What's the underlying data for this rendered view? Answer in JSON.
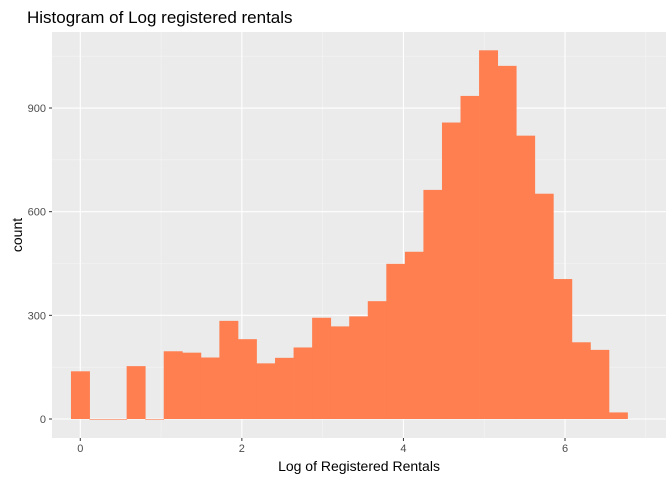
{
  "chart_data": {
    "type": "bar",
    "title": "Histogram of Log registered rentals",
    "xlabel": "Log of Registered Rentals",
    "ylabel": "count",
    "xlim": [
      -0.35,
      7.25
    ],
    "ylim": [
      -55,
      1120
    ],
    "xticks": [
      0,
      2,
      4,
      6
    ],
    "yticks": [
      0,
      300,
      600,
      900
    ],
    "xtick_labels": [
      "0",
      "2",
      "4",
      "6"
    ],
    "ytick_labels": [
      "0",
      "300",
      "600",
      "900"
    ],
    "grid": true,
    "legend": "none",
    "bin_start": -0.115,
    "bin_width": 0.2296,
    "values": [
      138,
      0,
      0,
      153,
      0,
      196,
      192,
      178,
      284,
      231,
      161,
      177,
      207,
      293,
      268,
      297,
      341,
      449,
      484,
      663,
      858,
      935,
      1067,
      1022,
      820,
      652,
      405,
      222,
      200,
      19
    ],
    "colors": {
      "bar": "#ff7f50",
      "panel": "#ebebeb",
      "grid_major": "#ffffff",
      "grid_minor": "#f5f5f5"
    }
  }
}
